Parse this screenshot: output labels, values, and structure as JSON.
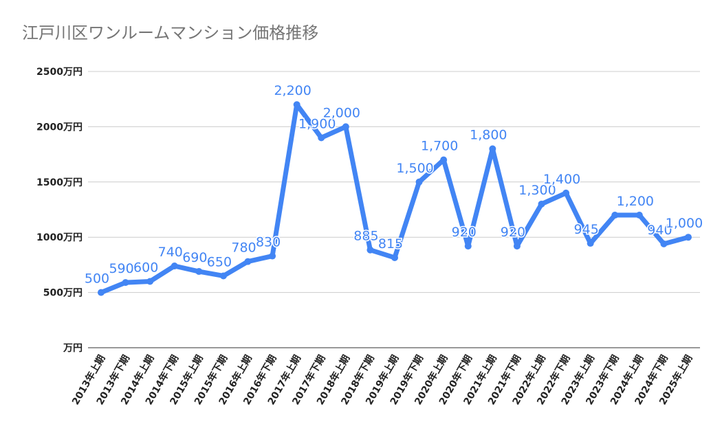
{
  "chart_data": {
    "type": "line",
    "title": "江戸川区ワンルームマンション価格推移",
    "xlabel": "",
    "ylabel": "",
    "ylim": [
      0,
      2500
    ],
    "grid": true,
    "legend": "none",
    "color": "#4285f4",
    "y_ticks": [
      {
        "value": 0,
        "label": "万円"
      },
      {
        "value": 500,
        "label": "500万円"
      },
      {
        "value": 1000,
        "label": "1000万円"
      },
      {
        "value": 1500,
        "label": "1500万円"
      },
      {
        "value": 2000,
        "label": "2000万円"
      },
      {
        "value": 2500,
        "label": "2500万円"
      }
    ],
    "categories": [
      "2013年上期",
      "2013年下期",
      "2014年上期",
      "2014年下期",
      "2015年上期",
      "2015年下期",
      "2016年上期",
      "2016年下期",
      "2017年上期",
      "2017年下期",
      "2018年上期",
      "2018年下期",
      "2019年上期",
      "2019年下期",
      "2020年上期",
      "2020年下期",
      "2021年上期",
      "2021年下期",
      "2022年上期",
      "2022年下期",
      "2023年上期",
      "2023年下期",
      "2024年上期",
      "2024年下期",
      "2025年上期"
    ],
    "values": [
      500,
      590,
      600,
      740,
      690,
      650,
      780,
      830,
      2200,
      1900,
      2000,
      885,
      815,
      1500,
      1700,
      920,
      1800,
      920,
      1300,
      1400,
      945,
      1200,
      1200,
      940,
      1000
    ],
    "data_labels": [
      "500",
      "590",
      "600",
      "740",
      "690",
      "650",
      "780",
      "830",
      "2,200",
      "1,900",
      "2,000",
      "885",
      "815",
      "1,500",
      "1,700",
      "920",
      "1,800",
      "920",
      "1,300",
      "1,400",
      "945",
      "",
      "1,200",
      "940",
      "1,000"
    ]
  }
}
